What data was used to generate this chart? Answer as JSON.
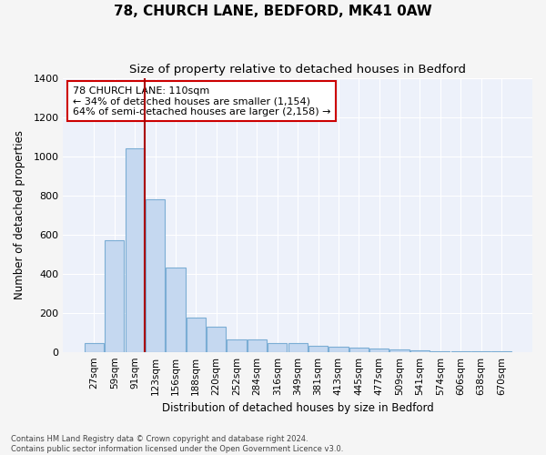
{
  "title": "78, CHURCH LANE, BEDFORD, MK41 0AW",
  "subtitle": "Size of property relative to detached houses in Bedford",
  "xlabel": "Distribution of detached houses by size in Bedford",
  "ylabel": "Number of detached properties",
  "bar_labels": [
    "27sqm",
    "59sqm",
    "91sqm",
    "123sqm",
    "156sqm",
    "188sqm",
    "220sqm",
    "252sqm",
    "284sqm",
    "316sqm",
    "349sqm",
    "381sqm",
    "413sqm",
    "445sqm",
    "477sqm",
    "509sqm",
    "541sqm",
    "574sqm",
    "606sqm",
    "638sqm",
    "670sqm"
  ],
  "bar_values": [
    45,
    570,
    1040,
    780,
    430,
    175,
    130,
    65,
    65,
    45,
    45,
    30,
    25,
    20,
    15,
    12,
    8,
    5,
    5,
    3,
    2
  ],
  "bar_color": "#c5d8f0",
  "bar_edge_color": "#7badd4",
  "background_color": "#edf1fa",
  "grid_color": "#ffffff",
  "fig_bg_color": "#f5f5f5",
  "vline_x": 2.47,
  "vline_color": "#aa0000",
  "annotation_text": "78 CHURCH LANE: 110sqm\n← 34% of detached houses are smaller (1,154)\n64% of semi-detached houses are larger (2,158) →",
  "annotation_box_facecolor": "#ffffff",
  "annotation_box_edgecolor": "#cc0000",
  "ylim": [
    0,
    1400
  ],
  "yticks": [
    0,
    200,
    400,
    600,
    800,
    1000,
    1200,
    1400
  ],
  "footer_line1": "Contains HM Land Registry data © Crown copyright and database right 2024.",
  "footer_line2": "Contains public sector information licensed under the Open Government Licence v3.0."
}
